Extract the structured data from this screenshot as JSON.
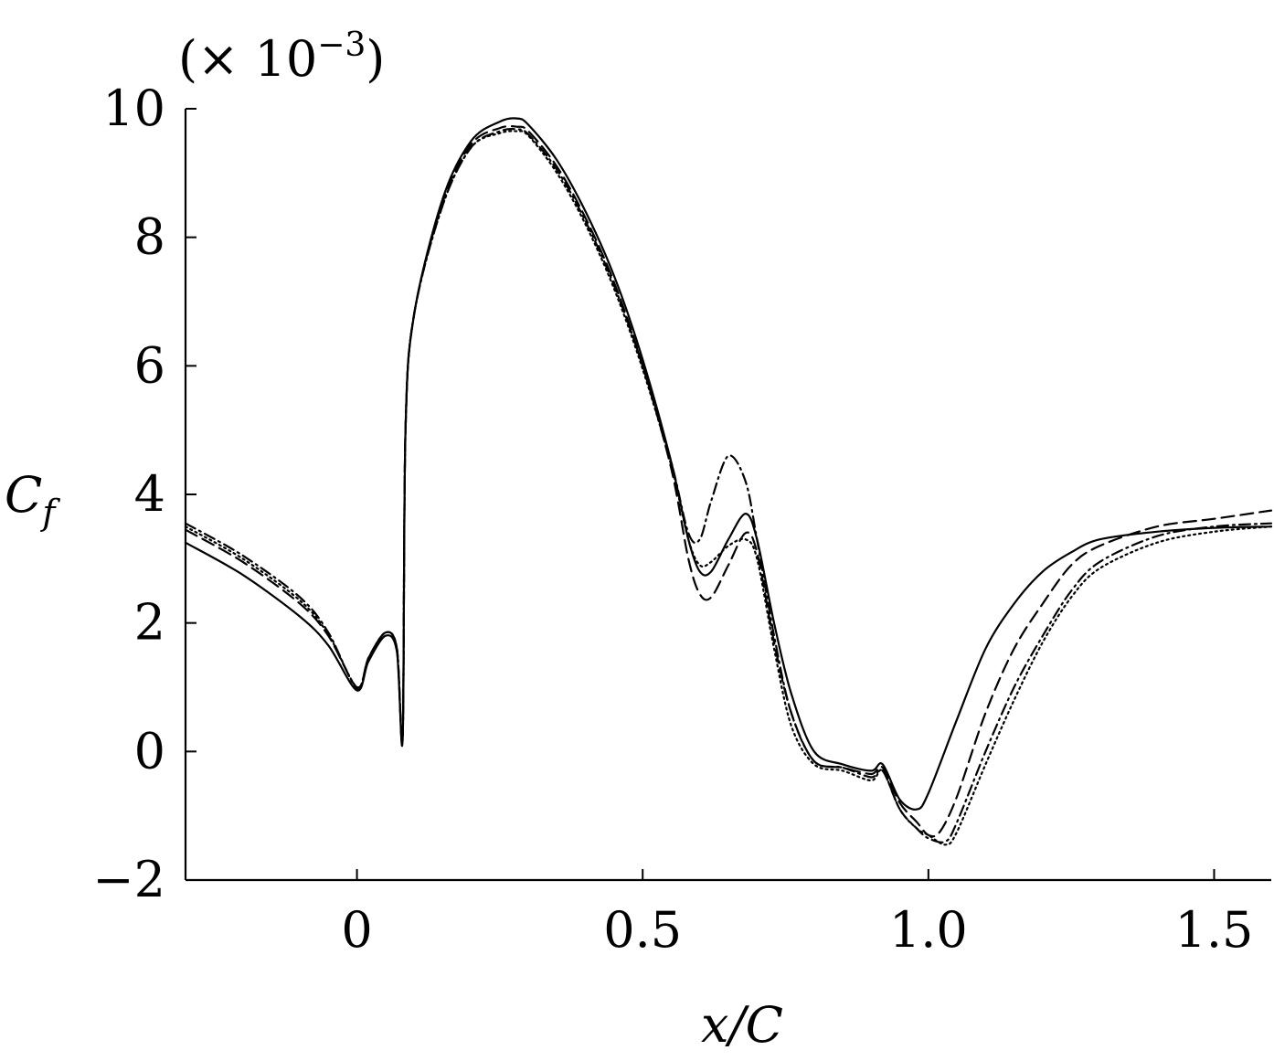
{
  "chart_data": {
    "type": "line",
    "xlabel": "x/C",
    "ylabel": "C_f",
    "scale_note": "(× 10^−3)",
    "xlim": [
      -0.3,
      1.6
    ],
    "ylim": [
      -2,
      10
    ],
    "x_ticks": [
      0,
      0.5,
      1.0,
      1.5
    ],
    "x_tick_labels": [
      "0",
      "0.5",
      "1.0",
      "1.5"
    ],
    "y_ticks": [
      -2,
      0,
      2,
      4,
      6,
      8,
      10
    ],
    "y_tick_labels": [
      "−2",
      "0",
      "2",
      "4",
      "6",
      "8",
      "10"
    ],
    "grid": false,
    "series": [
      {
        "style": "solid",
        "x": [
          -0.3,
          -0.2,
          -0.1,
          -0.05,
          0.0,
          0.02,
          0.05,
          0.07,
          0.08,
          0.085,
          0.1,
          0.15,
          0.2,
          0.25,
          0.28,
          0.3,
          0.35,
          0.4,
          0.45,
          0.5,
          0.55,
          0.58,
          0.6,
          0.62,
          0.65,
          0.68,
          0.7,
          0.73,
          0.76,
          0.8,
          0.85,
          0.9,
          0.92,
          0.95,
          0.98,
          1.0,
          1.05,
          1.1,
          1.15,
          1.2,
          1.25,
          1.3,
          1.4,
          1.5,
          1.6
        ],
        "y": [
          3.25,
          2.75,
          2.1,
          1.65,
          0.95,
          1.4,
          1.8,
          1.55,
          0.2,
          5.0,
          6.8,
          8.6,
          9.5,
          9.8,
          9.85,
          9.75,
          9.2,
          8.4,
          7.4,
          6.1,
          4.5,
          3.3,
          2.8,
          2.8,
          3.3,
          3.7,
          3.3,
          2.0,
          0.9,
          0.0,
          -0.2,
          -0.3,
          -0.2,
          -0.75,
          -0.9,
          -0.65,
          0.5,
          1.6,
          2.3,
          2.8,
          3.1,
          3.3,
          3.42,
          3.48,
          3.5
        ]
      },
      {
        "style": "dashed",
        "x": [
          -0.3,
          -0.2,
          -0.1,
          -0.05,
          0.0,
          0.02,
          0.05,
          0.07,
          0.08,
          0.085,
          0.1,
          0.15,
          0.2,
          0.25,
          0.28,
          0.3,
          0.35,
          0.4,
          0.45,
          0.5,
          0.55,
          0.58,
          0.6,
          0.62,
          0.65,
          0.68,
          0.7,
          0.73,
          0.76,
          0.8,
          0.85,
          0.9,
          0.92,
          0.95,
          0.98,
          1.0,
          1.02,
          1.05,
          1.1,
          1.15,
          1.2,
          1.25,
          1.3,
          1.4,
          1.5,
          1.6
        ],
        "y": [
          3.45,
          2.95,
          2.3,
          1.8,
          1.0,
          1.45,
          1.85,
          1.6,
          0.25,
          5.0,
          6.8,
          8.55,
          9.45,
          9.7,
          9.72,
          9.65,
          9.1,
          8.3,
          7.3,
          6.0,
          4.4,
          3.0,
          2.45,
          2.4,
          2.9,
          3.4,
          3.1,
          1.7,
          0.6,
          -0.15,
          -0.25,
          -0.35,
          -0.25,
          -0.8,
          -1.1,
          -1.3,
          -1.25,
          -0.7,
          0.6,
          1.6,
          2.3,
          2.9,
          3.2,
          3.5,
          3.62,
          3.75
        ]
      },
      {
        "style": "dash-dot",
        "x": [
          -0.3,
          -0.2,
          -0.1,
          -0.05,
          0.0,
          0.02,
          0.05,
          0.07,
          0.08,
          0.085,
          0.1,
          0.15,
          0.2,
          0.25,
          0.28,
          0.3,
          0.35,
          0.4,
          0.45,
          0.5,
          0.55,
          0.58,
          0.6,
          0.62,
          0.65,
          0.68,
          0.7,
          0.73,
          0.76,
          0.8,
          0.85,
          0.9,
          0.92,
          0.95,
          0.98,
          1.0,
          1.03,
          1.05,
          1.1,
          1.15,
          1.2,
          1.25,
          1.3,
          1.4,
          1.5,
          1.6
        ],
        "y": [
          3.55,
          3.05,
          2.4,
          1.85,
          0.98,
          1.45,
          1.85,
          1.6,
          0.22,
          5.0,
          6.8,
          8.5,
          9.4,
          9.65,
          9.68,
          9.6,
          9.05,
          8.25,
          7.25,
          6.0,
          4.5,
          3.4,
          3.3,
          3.9,
          4.6,
          4.2,
          3.3,
          1.8,
          0.6,
          -0.15,
          -0.25,
          -0.4,
          -0.3,
          -0.9,
          -1.2,
          -1.35,
          -1.4,
          -1.1,
          0.0,
          1.0,
          1.8,
          2.5,
          2.95,
          3.35,
          3.5,
          3.55
        ]
      },
      {
        "style": "dotted",
        "x": [
          -0.3,
          -0.2,
          -0.1,
          -0.05,
          0.0,
          0.02,
          0.05,
          0.07,
          0.08,
          0.085,
          0.1,
          0.15,
          0.2,
          0.25,
          0.28,
          0.3,
          0.35,
          0.4,
          0.45,
          0.5,
          0.55,
          0.58,
          0.6,
          0.62,
          0.65,
          0.68,
          0.7,
          0.73,
          0.76,
          0.8,
          0.85,
          0.9,
          0.92,
          0.95,
          0.98,
          1.0,
          1.03,
          1.05,
          1.1,
          1.15,
          1.2,
          1.25,
          1.3,
          1.4,
          1.5,
          1.6
        ],
        "y": [
          3.5,
          3.0,
          2.35,
          1.82,
          1.0,
          1.45,
          1.85,
          1.6,
          0.22,
          5.0,
          6.8,
          8.5,
          9.4,
          9.62,
          9.65,
          9.58,
          9.0,
          8.2,
          7.2,
          5.95,
          4.45,
          3.3,
          2.9,
          2.95,
          3.2,
          3.3,
          3.0,
          1.6,
          0.4,
          -0.2,
          -0.3,
          -0.45,
          -0.3,
          -0.9,
          -1.2,
          -1.3,
          -1.45,
          -1.25,
          -0.2,
          0.8,
          1.7,
          2.4,
          2.85,
          3.25,
          3.42,
          3.5
        ]
      }
    ]
  }
}
